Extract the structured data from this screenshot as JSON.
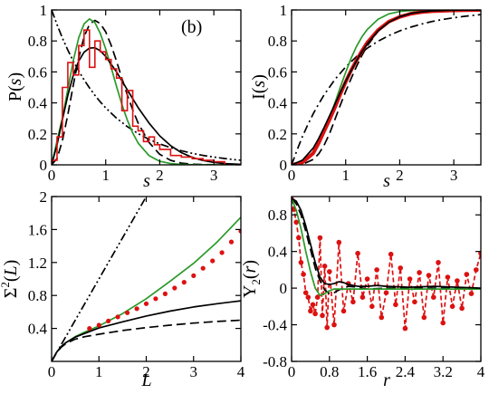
{
  "chart_data": [
    {
      "type": "line",
      "panel_label": "(b)",
      "xlabel": "s",
      "ylabel_text": "P(",
      "ylabel_var": "s",
      "ylabel_close": ")",
      "xlim": [
        0,
        3.5
      ],
      "ylim": [
        0,
        1
      ],
      "xticks": [
        0,
        1,
        2,
        3
      ],
      "xtick_labels": [
        "0",
        "1",
        "2",
        "3"
      ],
      "yticks": [
        0,
        0.2,
        0.4,
        0.6,
        0.8,
        1
      ],
      "ytick_labels": [
        "0",
        "0.2",
        "0.4",
        "0.6",
        "0.8",
        "1"
      ],
      "series": [
        {
          "style": "dashdotdot",
          "color": "#000000",
          "x": [
            0,
            0.1,
            0.2,
            0.3,
            0.4,
            0.5,
            0.6,
            0.7,
            0.8,
            0.9,
            1.0,
            1.2,
            1.4,
            1.6,
            1.8,
            2.0,
            2.2,
            2.4,
            2.6,
            2.8,
            3.0,
            3.2,
            3.4,
            3.5
          ],
          "y": [
            1,
            0.905,
            0.819,
            0.741,
            0.67,
            0.607,
            0.549,
            0.497,
            0.449,
            0.407,
            0.368,
            0.301,
            0.247,
            0.202,
            0.165,
            0.135,
            0.111,
            0.091,
            0.074,
            0.061,
            0.05,
            0.041,
            0.033,
            0.03
          ]
        },
        {
          "style": "dashed",
          "color": "#000000",
          "x": [
            0,
            0.1,
            0.2,
            0.3,
            0.4,
            0.5,
            0.6,
            0.7,
            0.8,
            0.9,
            1.0,
            1.1,
            1.2,
            1.3,
            1.4,
            1.5,
            1.6,
            1.8,
            2.0,
            2.2,
            2.4,
            2.6,
            3.0,
            3.5
          ],
          "y": [
            0,
            0.041,
            0.156,
            0.324,
            0.514,
            0.69,
            0.826,
            0.907,
            0.933,
            0.912,
            0.859,
            0.773,
            0.669,
            0.559,
            0.452,
            0.355,
            0.27,
            0.145,
            0.068,
            0.029,
            0.011,
            0.004,
            0.0004,
            0
          ]
        },
        {
          "style": "solid",
          "color": "#2a9a2a",
          "x": [
            0,
            0.1,
            0.2,
            0.3,
            0.4,
            0.5,
            0.6,
            0.7,
            0.8,
            0.9,
            1.0,
            1.1,
            1.2,
            1.3,
            1.4,
            1.5,
            1.6,
            1.8,
            2.0,
            2.2,
            2.4,
            2.6,
            3.0,
            3.5
          ],
          "y": [
            0,
            0.155,
            0.303,
            0.488,
            0.672,
            0.82,
            0.91,
            0.942,
            0.918,
            0.85,
            0.749,
            0.63,
            0.506,
            0.39,
            0.289,
            0.205,
            0.141,
            0.06,
            0.023,
            0.008,
            0.003,
            0.001,
            0.0001,
            0
          ]
        },
        {
          "style": "solid",
          "color": "#000000",
          "x": [
            0,
            0.1,
            0.2,
            0.3,
            0.4,
            0.5,
            0.6,
            0.7,
            0.8,
            0.9,
            1.0,
            1.2,
            1.4,
            1.6,
            1.8,
            2.0,
            2.2,
            2.4,
            2.6,
            2.8,
            3.0,
            3.2,
            3.5
          ],
          "y": [
            0,
            0.13,
            0.292,
            0.448,
            0.578,
            0.67,
            0.727,
            0.754,
            0.756,
            0.737,
            0.7,
            0.6,
            0.484,
            0.37,
            0.27,
            0.187,
            0.124,
            0.079,
            0.048,
            0.028,
            0.016,
            0.008,
            0.003
          ]
        },
        {
          "style": "histogram",
          "color": "#dd1111",
          "bin_edges": [
            0,
            0.1,
            0.2,
            0.3,
            0.4,
            0.5,
            0.6,
            0.7,
            0.8,
            0.9,
            1.0,
            1.1,
            1.2,
            1.3,
            1.4,
            1.5,
            1.6,
            1.7,
            1.8,
            1.9,
            2.0,
            2.2,
            2.4,
            2.6,
            2.8,
            3.0,
            3.2
          ],
          "heights": [
            0.03,
            0.18,
            0.5,
            0.66,
            0.58,
            0.77,
            0.87,
            0.63,
            0.8,
            0.73,
            0.68,
            0.62,
            0.56,
            0.35,
            0.48,
            0.25,
            0.22,
            0.15,
            0.18,
            0.13,
            0.1,
            0.06,
            0.05,
            0.04,
            0.03,
            0.02
          ]
        }
      ]
    },
    {
      "type": "line",
      "xlabel": "s",
      "ylabel_text": "I(",
      "ylabel_var": "s",
      "ylabel_close": ")",
      "xlim": [
        0,
        3.5
      ],
      "ylim": [
        0,
        1
      ],
      "xticks": [
        0,
        1,
        2,
        3
      ],
      "xtick_labels": [
        "0",
        "1",
        "2",
        "3"
      ],
      "yticks": [
        0,
        0.2,
        0.4,
        0.6,
        0.8,
        1
      ],
      "ytick_labels": [
        "0",
        "0.2",
        "0.4",
        "0.6",
        "0.8",
        "1"
      ],
      "series": [
        {
          "style": "dashdot",
          "color": "#000000",
          "x": [
            0,
            0.1,
            0.2,
            0.3,
            0.4,
            0.5,
            0.6,
            0.8,
            1.0,
            1.2,
            1.4,
            1.6,
            1.8,
            2.0,
            2.2,
            2.4,
            2.6,
            2.8,
            3.0,
            3.2,
            3.5
          ],
          "y": [
            0,
            0.095,
            0.181,
            0.259,
            0.33,
            0.393,
            0.451,
            0.551,
            0.632,
            0.699,
            0.753,
            0.798,
            0.835,
            0.865,
            0.889,
            0.909,
            0.926,
            0.939,
            0.95,
            0.959,
            0.97
          ]
        },
        {
          "style": "dashed",
          "color": "#000000",
          "x": [
            0,
            0.2,
            0.4,
            0.5,
            0.6,
            0.7,
            0.8,
            0.9,
            1.0,
            1.1,
            1.2,
            1.3,
            1.4,
            1.6,
            1.8,
            2.0,
            2.2,
            2.4,
            2.6,
            3.0,
            3.5
          ],
          "y": [
            0,
            0.003,
            0.035,
            0.071,
            0.125,
            0.2,
            0.292,
            0.384,
            0.473,
            0.557,
            0.635,
            0.706,
            0.768,
            0.862,
            0.926,
            0.962,
            0.982,
            0.992,
            0.996,
            0.999,
            1
          ]
        },
        {
          "style": "solid",
          "color": "#2a9a2a",
          "x": [
            0,
            0.2,
            0.4,
            0.5,
            0.6,
            0.7,
            0.8,
            0.9,
            1.0,
            1.1,
            1.2,
            1.3,
            1.4,
            1.6,
            1.8,
            2.0,
            2.2,
            2.4,
            2.6,
            3.0,
            3.5
          ],
          "y": [
            0,
            0.012,
            0.073,
            0.132,
            0.21,
            0.302,
            0.4,
            0.5,
            0.597,
            0.688,
            0.765,
            0.826,
            0.874,
            0.94,
            0.975,
            0.99,
            0.996,
            0.998,
            0.999,
            1,
            1
          ]
        },
        {
          "style": "solid",
          "color": "#dd1111",
          "width": 4,
          "x": [
            0,
            0.2,
            0.4,
            0.5,
            0.6,
            0.7,
            0.8,
            0.9,
            1.0,
            1.1,
            1.2,
            1.3,
            1.4,
            1.6,
            1.8,
            2.0,
            2.2,
            2.4,
            2.6,
            3.0,
            3.5
          ],
          "y": [
            0,
            0.015,
            0.075,
            0.14,
            0.215,
            0.29,
            0.37,
            0.455,
            0.535,
            0.61,
            0.675,
            0.735,
            0.79,
            0.87,
            0.925,
            0.955,
            0.975,
            0.986,
            0.992,
            0.997,
            1
          ]
        },
        {
          "style": "solid",
          "color": "#000000",
          "x": [
            0,
            0.2,
            0.4,
            0.5,
            0.6,
            0.7,
            0.8,
            0.9,
            1.0,
            1.1,
            1.2,
            1.3,
            1.4,
            1.6,
            1.8,
            2.0,
            2.2,
            2.4,
            2.6,
            3.0,
            3.5
          ],
          "y": [
            0,
            0.03,
            0.108,
            0.17,
            0.24,
            0.315,
            0.391,
            0.466,
            0.539,
            0.607,
            0.672,
            0.73,
            0.781,
            0.865,
            0.921,
            0.956,
            0.977,
            0.988,
            0.994,
            0.999,
            1
          ]
        }
      ]
    },
    {
      "type": "line",
      "xlabel": "L",
      "ylabel_text": "Σ",
      "ylabel_sup": "2",
      "ylabel_open": "(",
      "ylabel_var": "L",
      "ylabel_close": ")",
      "xlim": [
        0,
        4
      ],
      "ylim": [
        0,
        2
      ],
      "xticks": [
        0,
        1,
        2,
        3,
        4
      ],
      "xtick_labels": [
        "0",
        "1",
        "2",
        "3",
        "4"
      ],
      "yticks": [
        0.4,
        0.8,
        1.2,
        1.6,
        2
      ],
      "ytick_labels": [
        "0.4",
        "0.8",
        "1.2",
        "1.6",
        "2"
      ],
      "series": [
        {
          "style": "dashdotdot",
          "color": "#000000",
          "x": [
            0,
            2.05
          ],
          "y": [
            0,
            2.05
          ]
        },
        {
          "style": "solid",
          "color": "#2a9a2a",
          "x": [
            0,
            0.1,
            0.2,
            0.3,
            0.5,
            0.7,
            1.0,
            1.5,
            2.0,
            2.5,
            3.0,
            3.5,
            4.0
          ],
          "y": [
            0,
            0.105,
            0.18,
            0.228,
            0.3,
            0.355,
            0.43,
            0.58,
            0.76,
            0.97,
            1.19,
            1.45,
            1.75
          ]
        },
        {
          "style": "solid",
          "color": "#000000",
          "x": [
            0,
            0.1,
            0.2,
            0.3,
            0.5,
            0.7,
            1.0,
            1.5,
            2.0,
            2.5,
            3.0,
            3.5,
            4.0
          ],
          "y": [
            0,
            0.105,
            0.18,
            0.228,
            0.295,
            0.34,
            0.405,
            0.48,
            0.55,
            0.61,
            0.66,
            0.7,
            0.735
          ]
        },
        {
          "style": "dashed",
          "color": "#000000",
          "x": [
            0,
            0.1,
            0.2,
            0.3,
            0.5,
            0.7,
            1.0,
            1.5,
            2.0,
            2.5,
            3.0,
            3.5,
            4.0
          ],
          "y": [
            0,
            0.1,
            0.17,
            0.215,
            0.27,
            0.3,
            0.33,
            0.375,
            0.41,
            0.44,
            0.465,
            0.485,
            0.5
          ]
        },
        {
          "style": "dots",
          "color": "#dd1111",
          "x": [
            0.8,
            1.0,
            1.2,
            1.4,
            1.6,
            1.8,
            2.0,
            2.2,
            2.4,
            2.6,
            2.8,
            3.0,
            3.2,
            3.4,
            3.6,
            3.8,
            4.0
          ],
          "y": [
            0.4,
            0.44,
            0.49,
            0.54,
            0.59,
            0.64,
            0.7,
            0.76,
            0.82,
            0.89,
            0.96,
            1.04,
            1.13,
            1.22,
            1.32,
            1.45,
            1.58
          ]
        }
      ]
    },
    {
      "type": "line",
      "xlabel": "r",
      "ylabel_text": "Y",
      "ylabel_sub": "2",
      "ylabel_open": "(",
      "ylabel_var": "r",
      "ylabel_close": ")",
      "xlim": [
        0,
        4
      ],
      "ylim": [
        -0.8,
        1
      ],
      "xticks": [
        0,
        0.8,
        1.6,
        2.4,
        3.2,
        4
      ],
      "xtick_labels": [
        "0",
        "0.8",
        "1.6",
        "2.4",
        "3.2",
        "4"
      ],
      "yticks": [
        -0.8,
        -0.4,
        0,
        0.4,
        0.8
      ],
      "ytick_labels": [
        "-0.8",
        "-0.4",
        "0",
        "0.4",
        "0.8"
      ],
      "series": [
        {
          "style": "dashed-markers",
          "color": "#dd1111",
          "x": [
            0,
            0.05,
            0.1,
            0.15,
            0.2,
            0.25,
            0.3,
            0.35,
            0.4,
            0.45,
            0.5,
            0.55,
            0.6,
            0.65,
            0.7,
            0.75,
            0.8,
            0.9,
            1.0,
            1.1,
            1.2,
            1.3,
            1.4,
            1.5,
            1.6,
            1.7,
            1.8,
            1.9,
            2.0,
            2.1,
            2.2,
            2.3,
            2.4,
            2.5,
            2.6,
            2.7,
            2.8,
            2.9,
            3.0,
            3.1,
            3.2,
            3.3,
            3.4,
            3.5,
            3.6,
            3.7,
            3.8,
            3.9,
            4.0
          ],
          "y": [
            0.97,
            0.86,
            0.72,
            0.55,
            0.28,
            0.15,
            -0.05,
            -0.1,
            -0.25,
            -0.18,
            -0.28,
            -0.1,
            0.55,
            -0.3,
            0.24,
            -0.43,
            0.18,
            -0.4,
            0.5,
            -0.25,
            0.05,
            -0.15,
            0.38,
            -0.1,
            0.1,
            -0.2,
            0.2,
            -0.32,
            -0.05,
            0.37,
            -0.18,
            0.22,
            -0.44,
            0.1,
            -0.15,
            0.17,
            -0.32,
            0.14,
            -0.1,
            0.28,
            -0.38,
            0.12,
            -0.2,
            0.08,
            -0.22,
            0.15,
            -0.06,
            0.2,
            0.38
          ]
        },
        {
          "style": "dashed",
          "color": "#000000",
          "x": [
            0,
            0.1,
            0.2,
            0.3,
            0.4,
            0.5,
            0.6,
            0.7,
            0.8,
            0.9,
            1.0,
            1.2,
            1.4,
            1.6,
            2.0,
            2.5,
            3.0,
            3.5,
            4.0
          ],
          "y": [
            0.98,
            0.92,
            0.8,
            0.62,
            0.42,
            0.22,
            0.08,
            -0.02,
            -0.06,
            -0.05,
            -0.02,
            0.02,
            0.01,
            -0.01,
            0,
            0,
            0,
            0,
            0
          ]
        },
        {
          "style": "solid",
          "color": "#2a9a2a",
          "x": [
            0,
            0.1,
            0.2,
            0.3,
            0.4,
            0.5,
            0.6,
            0.7,
            0.8,
            0.9,
            1.0,
            1.2,
            1.4,
            1.6,
            2.0,
            2.5,
            3.0,
            3.5,
            4.0
          ],
          "y": [
            0.98,
            0.85,
            0.65,
            0.4,
            0.18,
            0.0,
            -0.08,
            -0.06,
            -0.03,
            -0.01,
            -0.01,
            -0.01,
            -0.01,
            -0.01,
            -0.01,
            -0.01,
            -0.01,
            -0.01,
            -0.01
          ]
        },
        {
          "style": "solid",
          "color": "#000000",
          "x": [
            0,
            0.1,
            0.2,
            0.3,
            0.4,
            0.5,
            0.6,
            0.7,
            0.8,
            0.9,
            1.0,
            1.1,
            1.2,
            1.4,
            1.6,
            1.8,
            2.0,
            2.5,
            3.0,
            3.5,
            4.0
          ],
          "y": [
            0.98,
            0.95,
            0.85,
            0.68,
            0.48,
            0.28,
            0.12,
            0.05,
            0.04,
            0.05,
            0.07,
            0.06,
            0.04,
            0.02,
            0.02,
            0.03,
            0.02,
            0.01,
            0.02,
            0.01,
            0.0
          ]
        }
      ]
    }
  ]
}
